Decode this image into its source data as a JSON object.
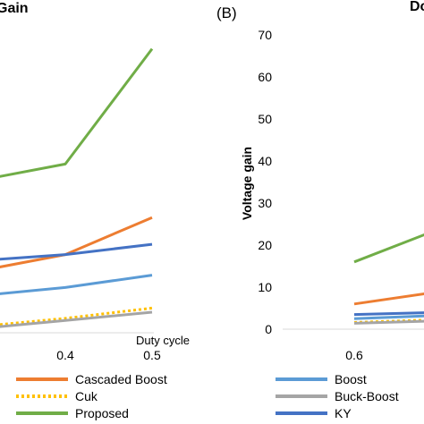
{
  "chart_data": [
    {
      "type": "line",
      "panel_title": "Gain",
      "xlabel": "Duty cycle",
      "x_ticks": [
        "0.4",
        "0.5"
      ],
      "grid": false,
      "series": [
        {
          "name": "Cascaded Boost",
          "color": "#ED7D31",
          "dash": "solid",
          "points": [
            [
              0.3,
              15
            ],
            [
              0.4,
              19
            ],
            [
              0.5,
              28
            ]
          ]
        },
        {
          "name": "Cuk",
          "color": "#FFC000",
          "dash": "dotted",
          "points": [
            [
              0.3,
              1.5
            ],
            [
              0.4,
              3.5
            ],
            [
              0.5,
              6
            ]
          ]
        },
        {
          "name": "Proposed",
          "color": "#70AD47",
          "dash": "solid",
          "points": [
            [
              0.3,
              37
            ],
            [
              0.4,
              41
            ],
            [
              0.5,
              69
            ]
          ]
        },
        {
          "name": "Boost",
          "color": "#5B9BD5",
          "dash": "solid",
          "points": [
            [
              0.3,
              9
            ],
            [
              0.4,
              11
            ],
            [
              0.5,
              14
            ]
          ]
        },
        {
          "name": "Buck-Boost",
          "color": "#A5A5A5",
          "dash": "solid",
          "points": [
            [
              0.3,
              1
            ],
            [
              0.4,
              3
            ],
            [
              0.5,
              5
            ]
          ]
        },
        {
          "name": "KY",
          "color": "#4472C4",
          "dash": "solid",
          "points": [
            [
              0.3,
              17.5
            ],
            [
              0.4,
              19
            ],
            [
              0.5,
              21.5
            ]
          ]
        }
      ]
    },
    {
      "type": "line",
      "panel_label": "(B)",
      "panel_title": "Do",
      "ylabel": "Voltage gain",
      "y_ticks": [
        "0",
        "10",
        "20",
        "30",
        "40",
        "50",
        "60",
        "70"
      ],
      "ylim": [
        0,
        70
      ],
      "x_ticks": [
        "0.6"
      ],
      "grid": false,
      "series": [
        {
          "name": "Proposed",
          "color": "#70AD47",
          "dash": "solid",
          "points": [
            [
              0.6,
              16
            ],
            [
              0.7,
              24
            ]
          ]
        },
        {
          "name": "Cascaded Boost",
          "color": "#ED7D31",
          "dash": "solid",
          "points": [
            [
              0.6,
              6
            ],
            [
              0.7,
              9
            ]
          ]
        },
        {
          "name": "KY",
          "color": "#4472C4",
          "dash": "solid",
          "points": [
            [
              0.6,
              3.5
            ],
            [
              0.7,
              4
            ]
          ]
        },
        {
          "name": "Boost",
          "color": "#5B9BD5",
          "dash": "solid",
          "points": [
            [
              0.6,
              2.5
            ],
            [
              0.7,
              3.3
            ]
          ]
        },
        {
          "name": "Cuk",
          "color": "#FFC000",
          "dash": "dotted",
          "points": [
            [
              0.6,
              1.6
            ],
            [
              0.7,
              2.3
            ]
          ]
        },
        {
          "name": "Buck-Boost",
          "color": "#A5A5A5",
          "dash": "solid",
          "points": [
            [
              0.6,
              1.4
            ],
            [
              0.7,
              2.0
            ]
          ]
        }
      ]
    }
  ],
  "legend_left": [
    {
      "name": "Cascaded Boost",
      "color": "#ED7D31",
      "dash": "solid"
    },
    {
      "name": "Cuk",
      "color": "#FFC000",
      "dash": "dotted"
    },
    {
      "name": "Proposed",
      "color": "#70AD47",
      "dash": "solid"
    }
  ],
  "legend_right": [
    {
      "name": "Boost",
      "color": "#5B9BD5",
      "dash": "solid"
    },
    {
      "name": "Buck-Boost",
      "color": "#A5A5A5",
      "dash": "solid"
    },
    {
      "name": "KY",
      "color": "#4472C4",
      "dash": "solid"
    }
  ]
}
